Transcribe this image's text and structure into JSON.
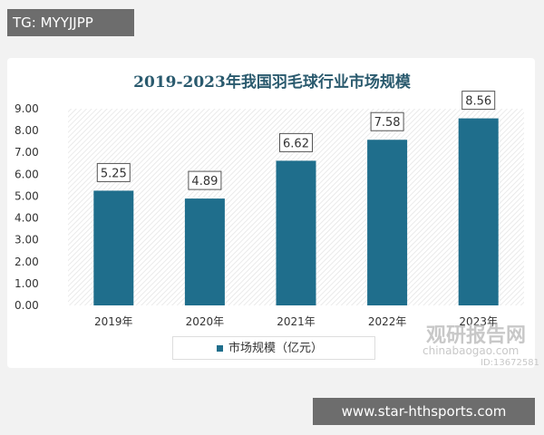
{
  "overlay": {
    "tag": "TG: MYYJJPP",
    "site": "www.star-hthsports.com"
  },
  "watermark": {
    "name": "观研报告网",
    "url": "chinabaogao.com",
    "id": "ID:13672581"
  },
  "chart_data": {
    "type": "bar",
    "title": "2019-2023年我国羽毛球行业市场规模",
    "categories": [
      "2019年",
      "2020年",
      "2021年",
      "2022年",
      "2023年"
    ],
    "series": [
      {
        "name": "市场规模（亿元）",
        "values": [
          5.25,
          4.89,
          6.62,
          7.58,
          8.56
        ]
      }
    ],
    "data_labels": [
      "5.25",
      "4.89",
      "6.62",
      "7.58",
      "8.56"
    ],
    "yticks": [
      "0.00",
      "1.00",
      "2.00",
      "3.00",
      "4.00",
      "5.00",
      "6.00",
      "7.00",
      "8.00",
      "9.00"
    ],
    "ylim": [
      0,
      9
    ],
    "legend_position": "bottom",
    "grid": false,
    "colors": {
      "bar": "#1f6e8c",
      "title": "#2a5a6e"
    }
  }
}
